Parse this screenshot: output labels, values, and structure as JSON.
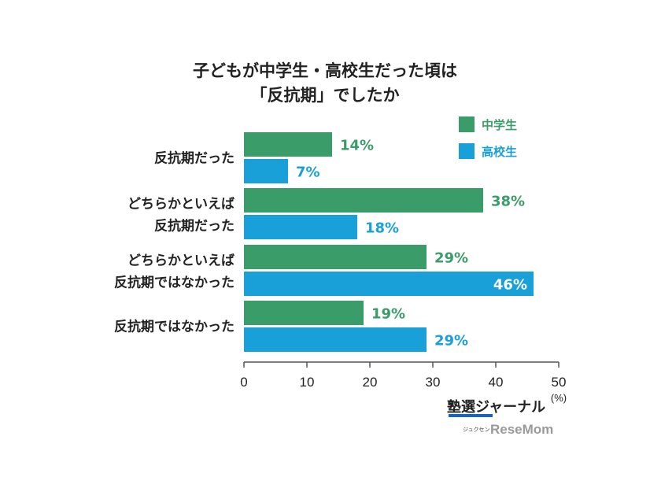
{
  "colors": {
    "junior_high": "#3a9c69",
    "high_school": "#1aa0d8",
    "axis": "#555555"
  },
  "legend": {
    "junior_high": "中学生",
    "high_school": "高校生"
  },
  "logo": {
    "main": "塾選ジャーナル",
    "sub": "ジュクセン",
    "brand": "ReseMom"
  },
  "chart_data": {
    "type": "bar",
    "orientation": "horizontal",
    "title": [
      "子どもが中学生・高校生だった頃は",
      "「反抗期」でしたか"
    ],
    "categories": [
      [
        "反抗期だった"
      ],
      [
        "どちらかといえば",
        "反抗期だった"
      ],
      [
        "どちらかといえば",
        "反抗期ではなかった"
      ],
      [
        "反抗期ではなかった"
      ]
    ],
    "series": [
      {
        "name": "中学生",
        "values": [
          14,
          38,
          29,
          19
        ],
        "labels": [
          "14%",
          "38%",
          "29%",
          "19%"
        ]
      },
      {
        "name": "高校生",
        "values": [
          7,
          18,
          46,
          29
        ],
        "labels": [
          "7%",
          "18%",
          "46%",
          "29%"
        ]
      }
    ],
    "xlim": [
      0,
      50
    ],
    "xticks": [
      0,
      10,
      20,
      30,
      40,
      50
    ],
    "tick_labels": [
      "0",
      "10",
      "20",
      "30",
      "40",
      "50"
    ],
    "unit": "(%)",
    "legend_position": "top-right",
    "grid": false
  }
}
